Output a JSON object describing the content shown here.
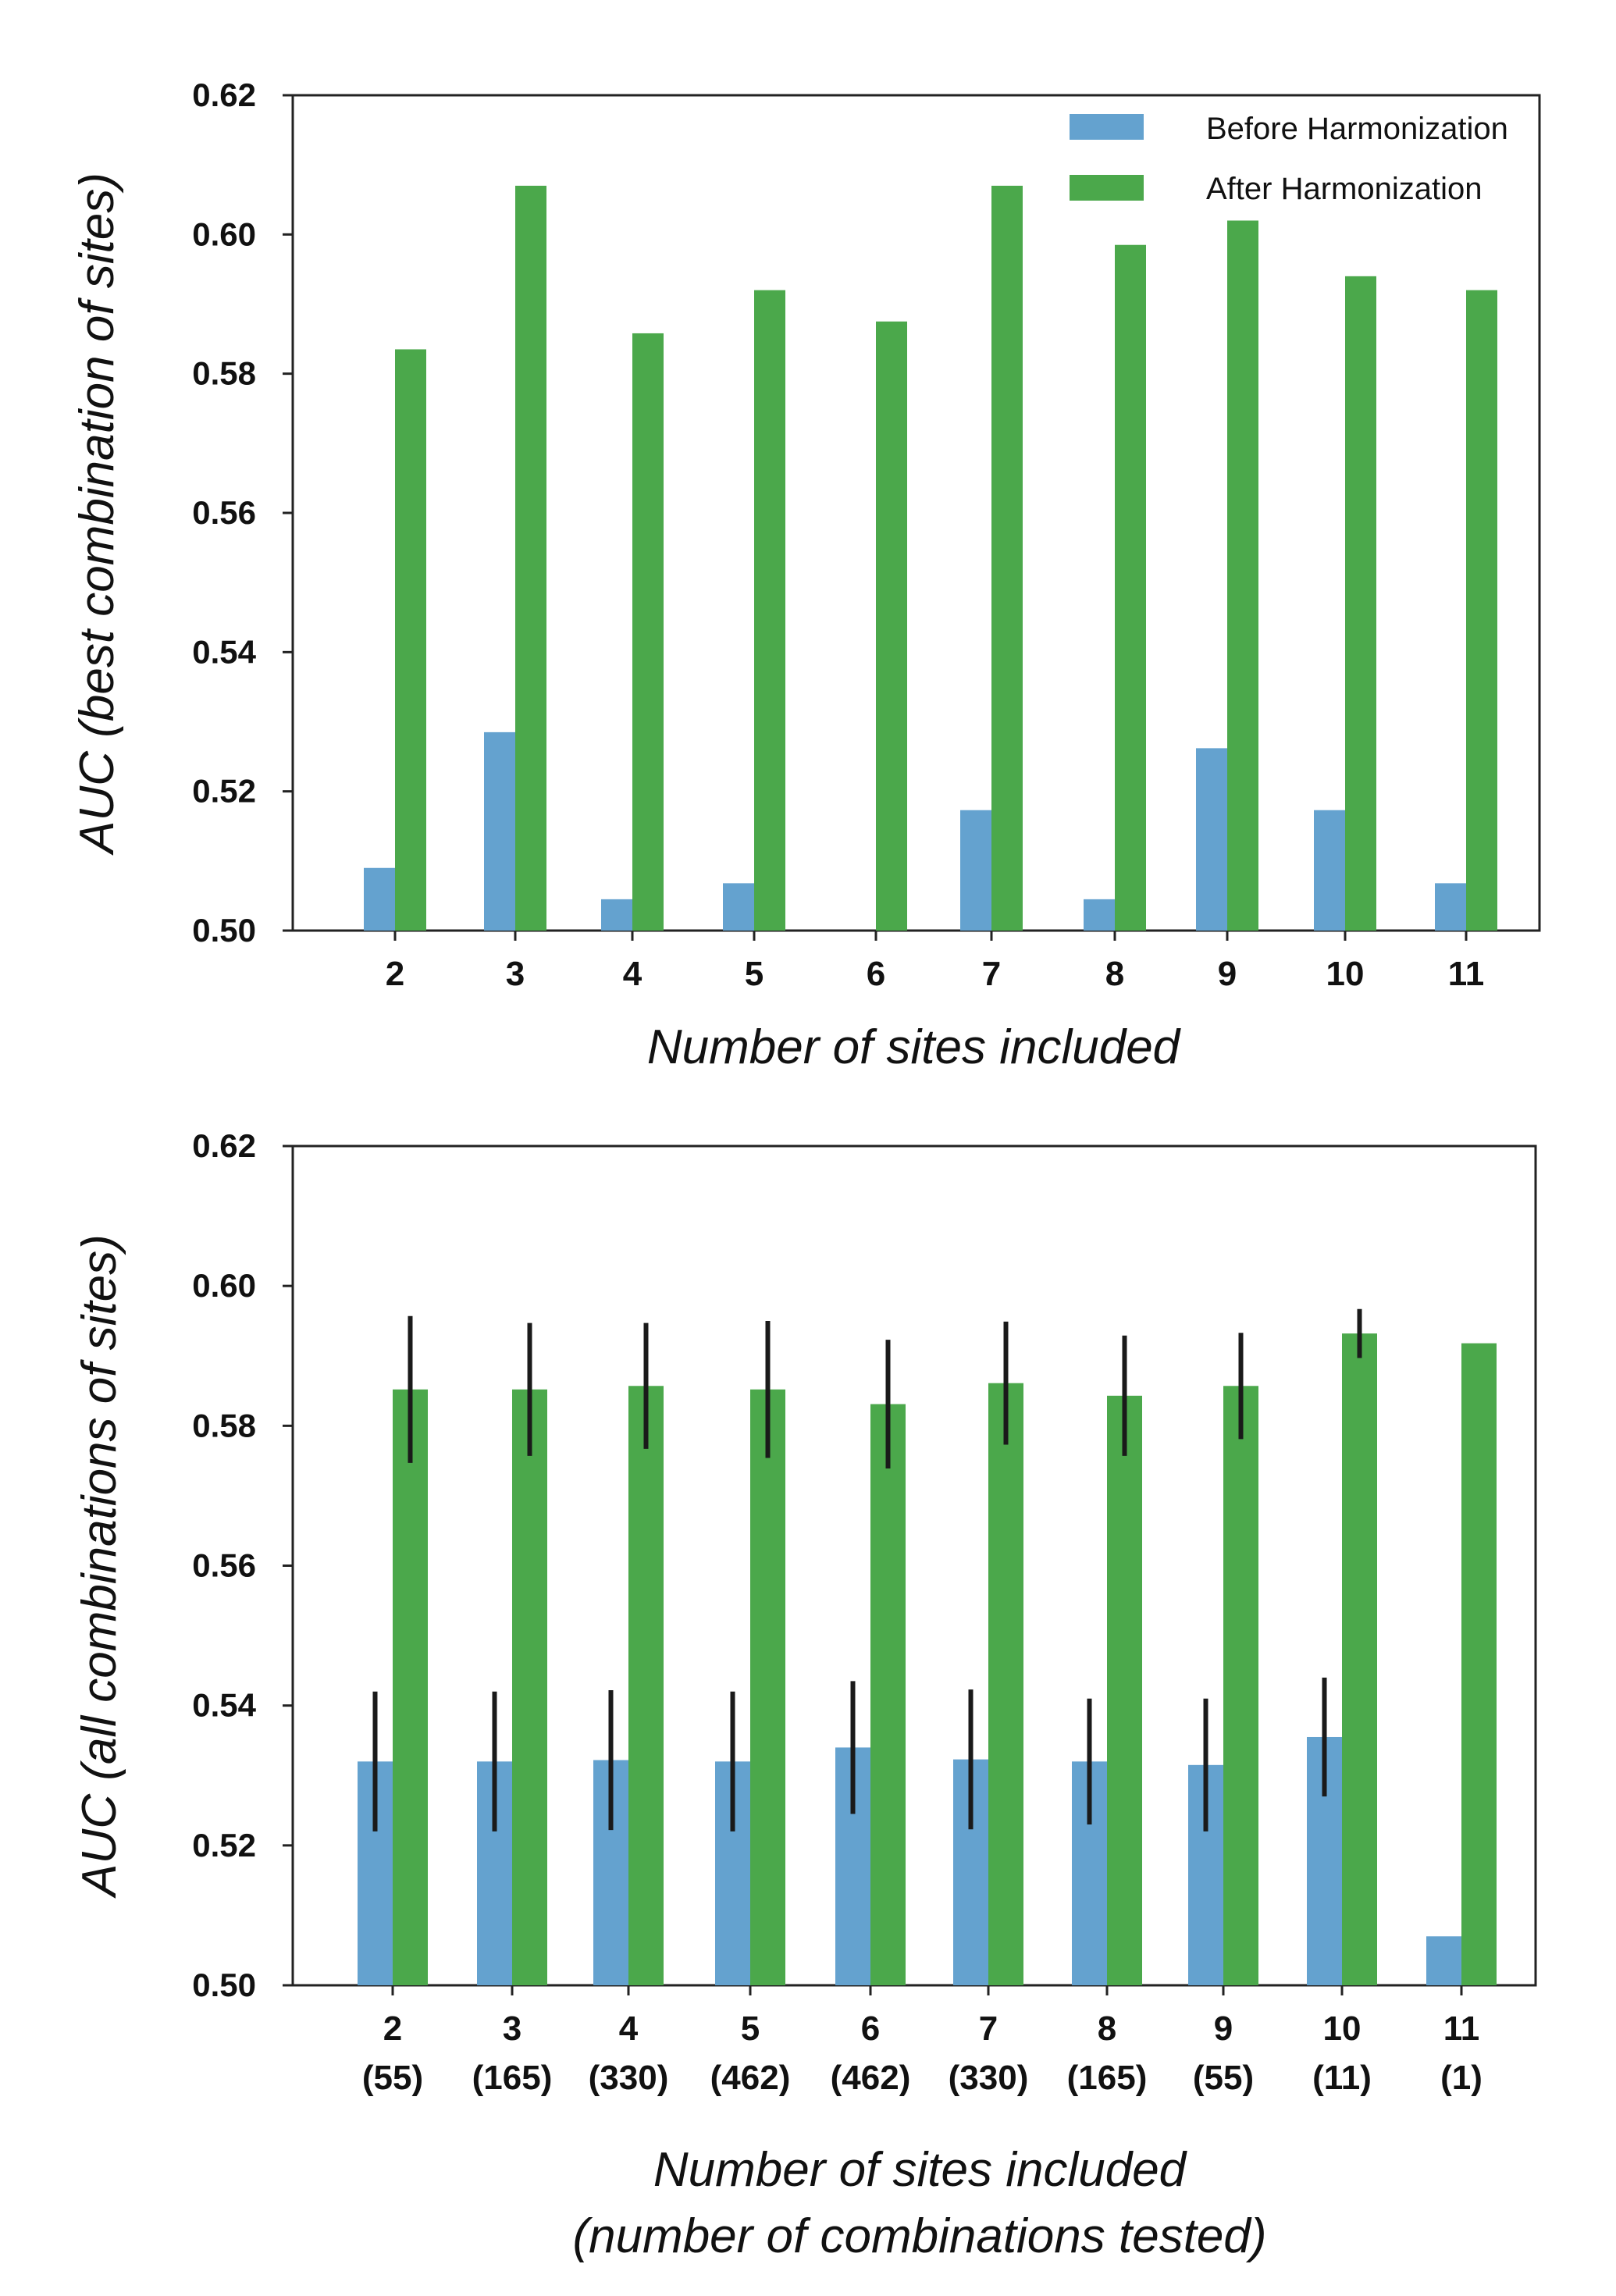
{
  "colors": {
    "before": "#64a2cf",
    "after": "#4ba84b",
    "error": "#1a1a1a",
    "axis": "#222222"
  },
  "chart_data": [
    {
      "type": "bar",
      "title": "",
      "xlabel": "Number of sites included",
      "ylabel": "AUC (best combination of sites)",
      "ylim": [
        0.5,
        0.62
      ],
      "yticks": [
        "0.50",
        "0.52",
        "0.54",
        "0.56",
        "0.58",
        "0.60",
        "0.62"
      ],
      "categories": [
        "2",
        "3",
        "4",
        "5",
        "6",
        "7",
        "8",
        "9",
        "10",
        "11"
      ],
      "series": [
        {
          "name": "Before Harmonization",
          "values": [
            0.509,
            0.5285,
            0.5045,
            0.5068,
            0.5,
            0.5173,
            0.5045,
            0.5262,
            0.5173,
            0.5068
          ]
        },
        {
          "name": "After Harmonization",
          "values": [
            0.5835,
            0.607,
            0.5858,
            0.592,
            0.5875,
            0.607,
            0.5985,
            0.602,
            0.594,
            0.592
          ]
        }
      ],
      "legend": {
        "position": "top-right",
        "entries": [
          "Before Harmonization",
          "After Harmonization"
        ]
      }
    },
    {
      "type": "bar",
      "title": "",
      "xlabel": "Number of sites included",
      "xlabel2": "(number of combinations tested)",
      "ylabel": "AUC (all combinations of sites)",
      "ylim": [
        0.5,
        0.62
      ],
      "yticks": [
        "0.50",
        "0.52",
        "0.54",
        "0.56",
        "0.58",
        "0.60",
        "0.62"
      ],
      "categories": [
        "2",
        "3",
        "4",
        "5",
        "6",
        "7",
        "8",
        "9",
        "10",
        "11"
      ],
      "sublabels": [
        "(55)",
        "(165)",
        "(330)",
        "(462)",
        "(462)",
        "(330)",
        "(165)",
        "(55)",
        "(11)",
        "(1)"
      ],
      "series": [
        {
          "name": "Before Harmonization",
          "values": [
            0.532,
            0.532,
            0.5322,
            0.532,
            0.534,
            0.5323,
            0.532,
            0.5315,
            0.5355,
            0.507
          ],
          "error": [
            0.01,
            0.01,
            0.01,
            0.01,
            0.0095,
            0.01,
            0.009,
            0.0095,
            0.0085,
            0
          ]
        },
        {
          "name": "After Harmonization",
          "values": [
            0.5852,
            0.5852,
            0.5857,
            0.5852,
            0.5831,
            0.5861,
            0.5843,
            0.5857,
            0.5932,
            0.5918
          ],
          "error": [
            0.0105,
            0.0095,
            0.009,
            0.0098,
            0.0092,
            0.0088,
            0.0086,
            0.0076,
            0.0035,
            0
          ]
        }
      ]
    }
  ]
}
